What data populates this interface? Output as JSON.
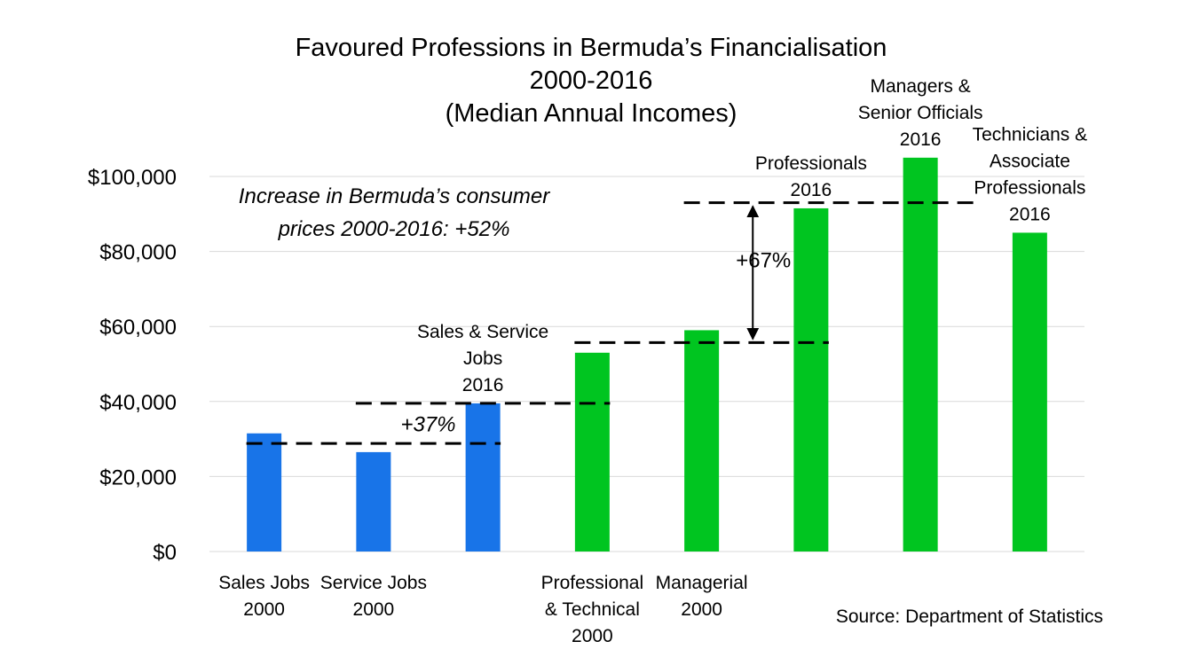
{
  "chart_data": {
    "type": "bar",
    "title": [
      "Favoured Professions in Bermuda’s Financialisation",
      "2000-2016",
      "(Median Annual Incomes)"
    ],
    "xlabel": "",
    "ylabel": "",
    "ylim": [
      0,
      100000
    ],
    "yticks": [
      0,
      20000,
      40000,
      60000,
      80000,
      100000
    ],
    "ytick_labels": [
      "$0",
      "$20,000",
      "$40,000",
      "$60,000",
      "$80,000",
      "$100,000"
    ],
    "grid": true,
    "legend": "none",
    "colors": {
      "blue": "#1874e8",
      "green": "#00c520"
    },
    "categories": [
      {
        "lines": [
          "Sales Jobs",
          "2000"
        ],
        "label_position": "below"
      },
      {
        "lines": [
          "Service Jobs",
          "2000"
        ],
        "label_position": "below"
      },
      {
        "lines": [
          "Sales & Service",
          "Jobs",
          "2016"
        ],
        "label_position": "above"
      },
      {
        "lines": [
          "Professional",
          "& Technical",
          "2000"
        ],
        "label_position": "below"
      },
      {
        "lines": [
          "Managerial",
          "2000"
        ],
        "label_position": "below"
      },
      {
        "lines": [
          "Professionals",
          "2016"
        ],
        "label_position": "above"
      },
      {
        "lines": [
          "Managers &",
          "Senior Officials",
          "2016"
        ],
        "label_position": "above"
      },
      {
        "lines": [
          "Technicians &",
          "Associate",
          "Professionals",
          "2016"
        ],
        "label_position": "above"
      }
    ],
    "values": [
      31500,
      26500,
      39500,
      53000,
      59000,
      91500,
      105000,
      85000
    ],
    "bar_colors": [
      "blue",
      "blue",
      "blue",
      "green",
      "green",
      "green",
      "green",
      "green"
    ],
    "reference_lines": [
      {
        "value": 28800,
        "from_category": 0,
        "to_category": 2
      },
      {
        "value": 39500,
        "from_category": 1,
        "to_category": 3
      },
      {
        "value": 55700,
        "from_category": 3,
        "to_category": 5
      },
      {
        "value": 93000,
        "from_category": 4,
        "to_category": 6
      }
    ],
    "annotations": [
      {
        "text": "+37%",
        "value_from": 28800,
        "value_to": 39500,
        "between": 1
      },
      {
        "text": "+67%",
        "value_from": 55700,
        "value_to": 93000,
        "between": 4
      }
    ],
    "note": [
      "Increase in Bermuda’s consumer",
      "prices 2000-2016: +52%"
    ],
    "source": "Source: Department of Statistics"
  }
}
